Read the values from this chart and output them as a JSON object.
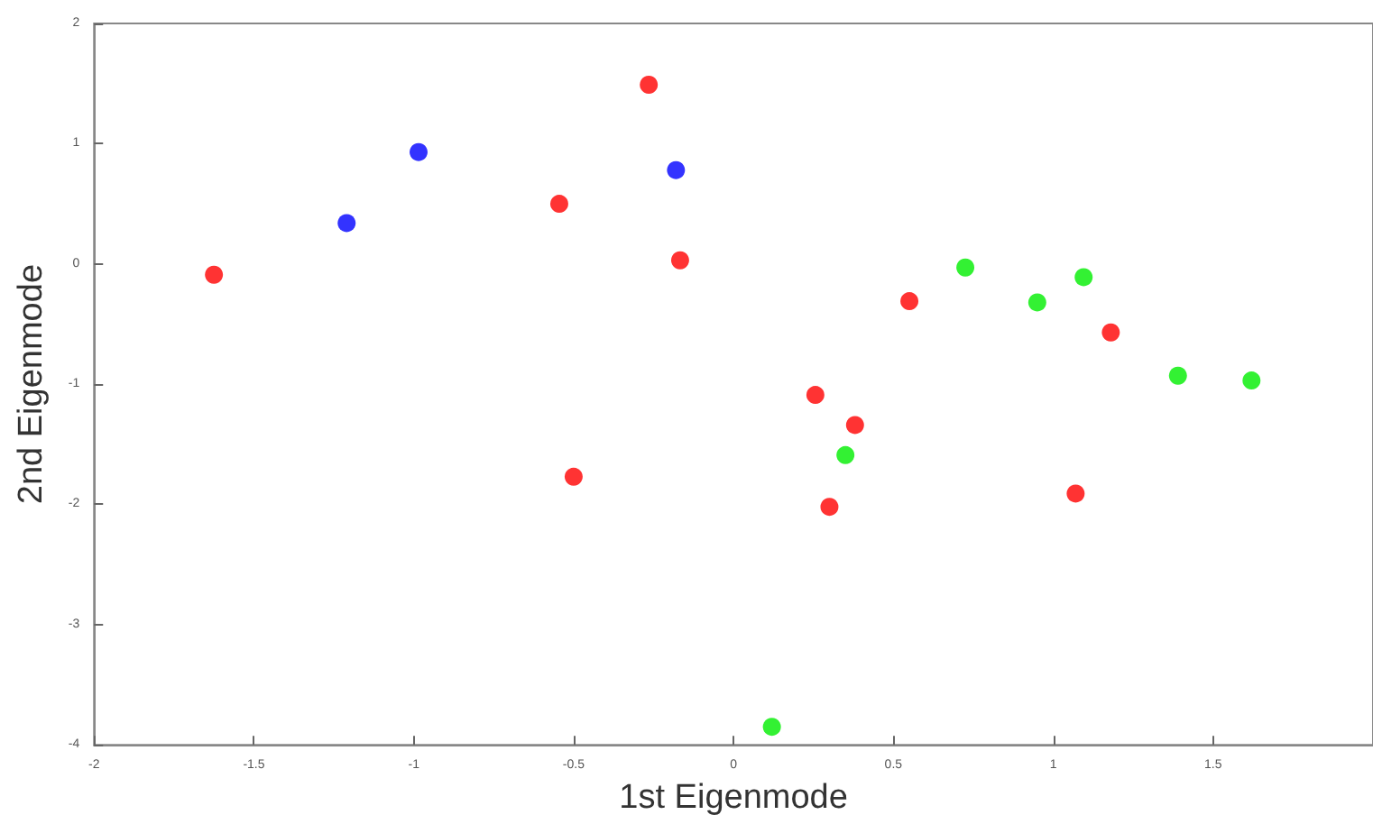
{
  "chart_data": {
    "type": "scatter",
    "xlabel": "1st Eigenmode",
    "ylabel": "2nd Eigenmode",
    "xlim": [
      -2,
      2
    ],
    "ylim": [
      -4,
      2
    ],
    "xticks": [
      -2,
      -1.5,
      -1,
      -0.5,
      0,
      0.5,
      1,
      1.5
    ],
    "yticks": [
      -4,
      -3,
      -2,
      -1,
      0,
      1,
      2
    ],
    "grid": false,
    "marker": "circle",
    "series": [
      {
        "color": "#ff0000",
        "x": [
          -1.625,
          -0.265,
          -0.545,
          -0.167,
          -0.5,
          0.55,
          0.256,
          0.38,
          0.3,
          1.18,
          1.07
        ],
        "values": [
          -0.09,
          1.49,
          0.5,
          0.03,
          -1.77,
          -0.31,
          -1.09,
          -1.34,
          -2.02,
          -0.57,
          -1.91
        ]
      },
      {
        "color": "#0000ff",
        "x": [
          -1.21,
          -0.985,
          -0.18
        ],
        "values": [
          0.34,
          0.93,
          0.78
        ]
      },
      {
        "color": "#00ee00",
        "x": [
          0.725,
          0.95,
          1.095,
          1.39,
          1.62,
          0.35,
          0.12
        ],
        "values": [
          -0.03,
          -0.32,
          -0.11,
          -0.93,
          -0.97,
          -1.59,
          -3.85
        ]
      }
    ]
  }
}
